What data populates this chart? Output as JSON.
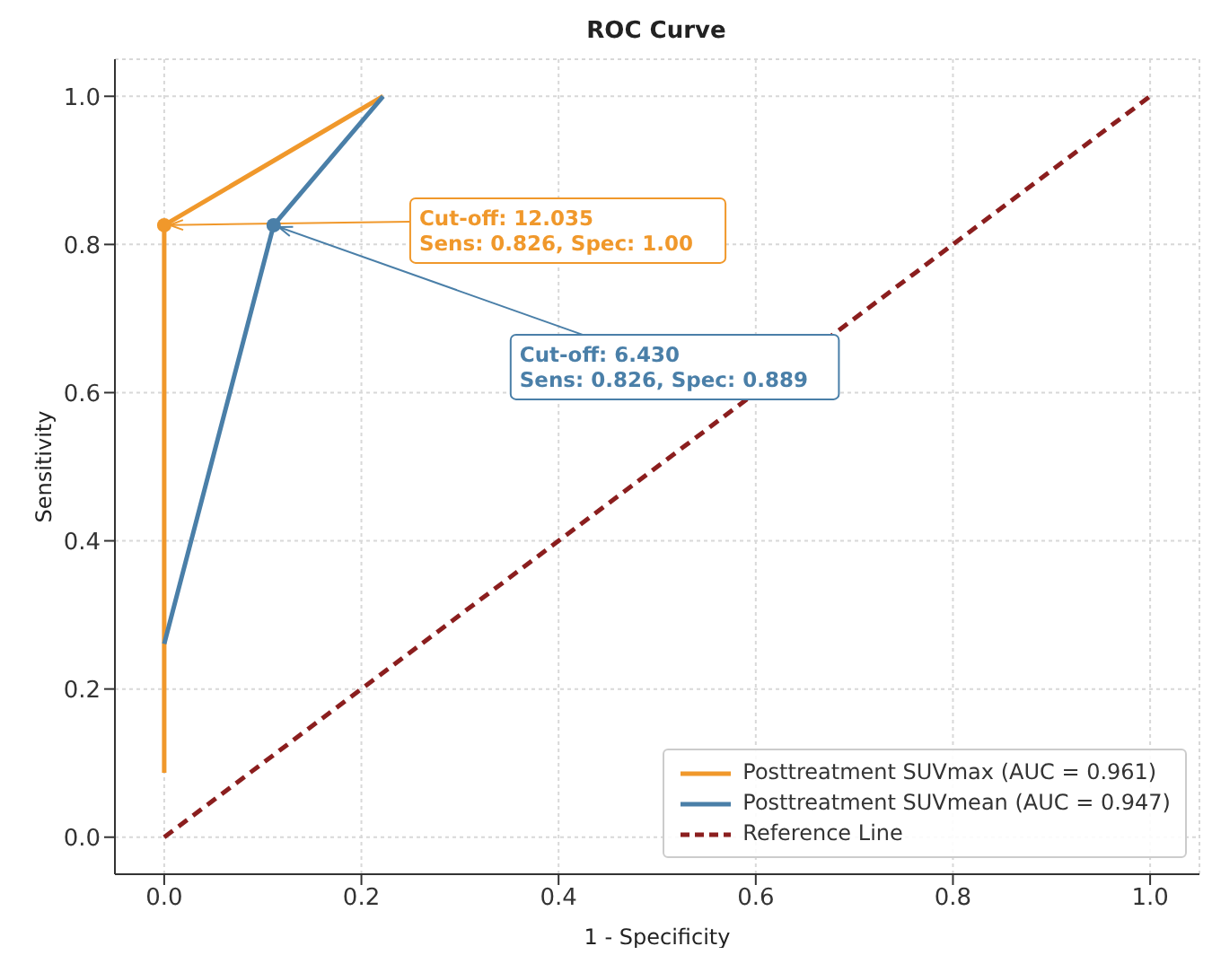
{
  "chart_data": {
    "type": "line",
    "title": "ROC Curve",
    "xlabel": "1 - Specificity",
    "ylabel": "Sensitivity",
    "xlim": [
      -0.05,
      1.05
    ],
    "ylim": [
      -0.05,
      1.05
    ],
    "xticks": [
      {
        "value": 0,
        "label": "0.0"
      },
      {
        "value": 0.2,
        "label": "0.2"
      },
      {
        "value": 0.4,
        "label": "0.4"
      },
      {
        "value": 0.6,
        "label": "0.6"
      },
      {
        "value": 0.8,
        "label": "0.8"
      },
      {
        "value": 1,
        "label": "1.0"
      }
    ],
    "yticks": [
      {
        "value": 0,
        "label": "0.0"
      },
      {
        "value": 0.2,
        "label": "0.2"
      },
      {
        "value": 0.4,
        "label": "0.4"
      },
      {
        "value": 0.6,
        "label": "0.6"
      },
      {
        "value": 0.8,
        "label": "0.8"
      },
      {
        "value": 1,
        "label": "1.0"
      }
    ],
    "grid": true,
    "legend": "bottom right",
    "series": [
      {
        "name": "Posttreatment SUVmax (AUC = 0.961)",
        "color": "#f0982b",
        "x": [
          0,
          0,
          0.222
        ],
        "values": [
          0.087,
          0.826,
          1.0
        ]
      },
      {
        "name": "Posttreatment SUVmean (AUC = 0.947)",
        "color": "#4a7fa8",
        "x": [
          0,
          0.111,
          0.222
        ],
        "values": [
          0.261,
          0.826,
          1.0
        ]
      },
      {
        "name": "Reference Line",
        "color": "#8b1e1e",
        "x": [
          0,
          1
        ],
        "values": [
          0,
          1
        ],
        "line_style": "dashed"
      }
    ],
    "annotations": [
      {
        "text": "Cut-off: 12.035\nSens: 0.826, Spec: 1.00",
        "x": 0,
        "y": 0.826
      },
      {
        "text": "Cut-off: 6.430\nSens: 0.826, Spec: 0.889",
        "x": 0.111,
        "y": 0.826
      }
    ]
  }
}
